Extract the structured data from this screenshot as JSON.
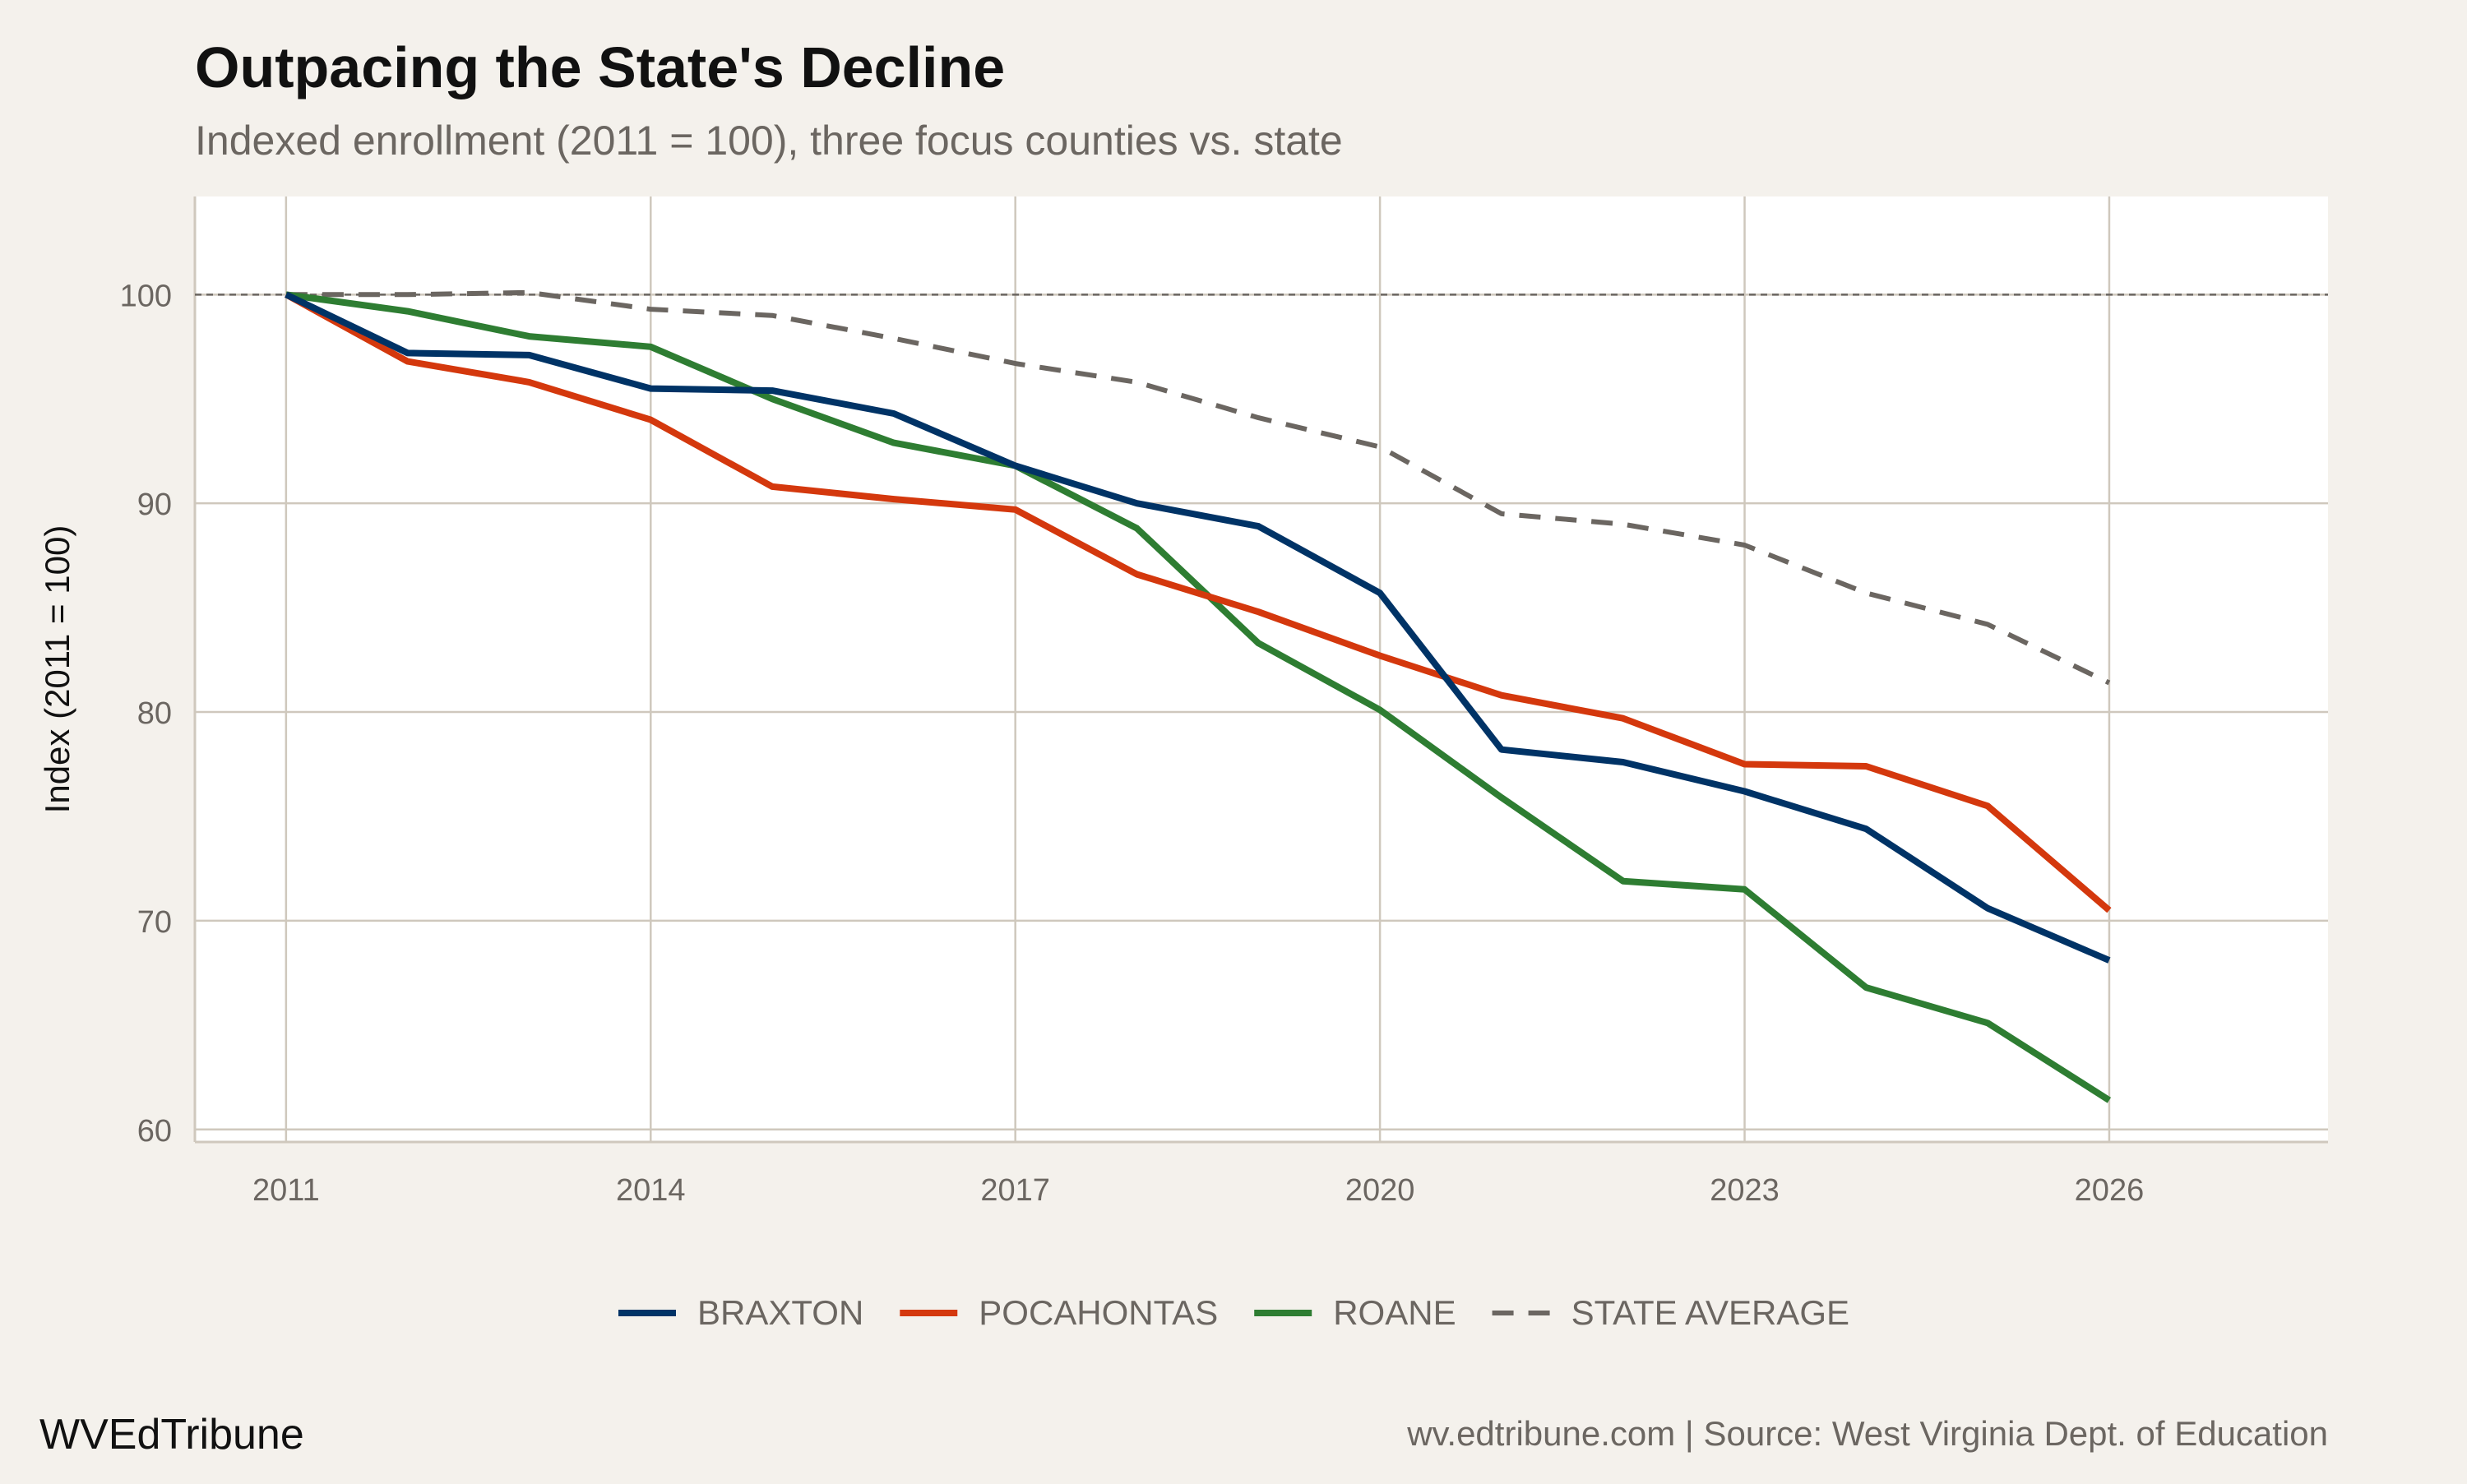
{
  "title": "Outpacing the State's Decline",
  "subtitle": "Indexed enrollment (2011 = 100), three focus counties vs. state",
  "brand": "WVEdTribune",
  "footer_source": "wv.edtribune.com | Source: West Virginia Dept. of Education",
  "chart_data": {
    "type": "line",
    "title": "Outpacing the State's Decline",
    "subtitle": "Indexed enrollment (2011 = 100), three focus counties vs. state",
    "xlabel": "",
    "ylabel": "Index (2011 = 100)",
    "xlim": [
      2010.25,
      2027.8
    ],
    "ylim": [
      59.4,
      104.7
    ],
    "xticks": [
      2011,
      2014,
      2017,
      2020,
      2023,
      2026
    ],
    "yticks": [
      60,
      70,
      80,
      90,
      100
    ],
    "grid": true,
    "legend_position": "bottom",
    "reference_line": {
      "y": 100,
      "style": "dashed",
      "color": "#6b6661"
    },
    "x": [
      2011,
      2012,
      2013,
      2014,
      2015,
      2016,
      2017,
      2018,
      2019,
      2020,
      2021,
      2022,
      2023,
      2024,
      2025,
      2026
    ],
    "series": [
      {
        "name": "BRAXTON",
        "color": "#003366",
        "dashed": false,
        "values": [
          100,
          97.2,
          97.1,
          95.5,
          95.4,
          94.3,
          91.8,
          90.0,
          88.9,
          85.7,
          78.2,
          77.6,
          76.2,
          74.4,
          70.6,
          68.1
        ]
      },
      {
        "name": "POCAHONTAS",
        "color": "#d4380d",
        "dashed": false,
        "values": [
          100,
          96.8,
          95.8,
          94.0,
          90.8,
          90.2,
          89.7,
          86.6,
          84.8,
          82.7,
          80.8,
          79.7,
          77.5,
          77.4,
          75.5,
          70.5
        ]
      },
      {
        "name": "ROANE",
        "color": "#2e7d32",
        "dashed": false,
        "values": [
          100,
          99.2,
          98.0,
          97.5,
          95.0,
          92.9,
          91.8,
          88.8,
          83.3,
          80.1,
          75.9,
          71.9,
          71.5,
          66.8,
          65.1,
          61.4
        ]
      },
      {
        "name": "STATE AVERAGE",
        "color": "#6b6661",
        "dashed": true,
        "values": [
          100,
          100.0,
          100.1,
          99.3,
          99.0,
          97.9,
          96.7,
          95.8,
          94.1,
          92.7,
          89.5,
          89.0,
          88.0,
          85.7,
          84.2,
          81.4
        ]
      }
    ]
  }
}
